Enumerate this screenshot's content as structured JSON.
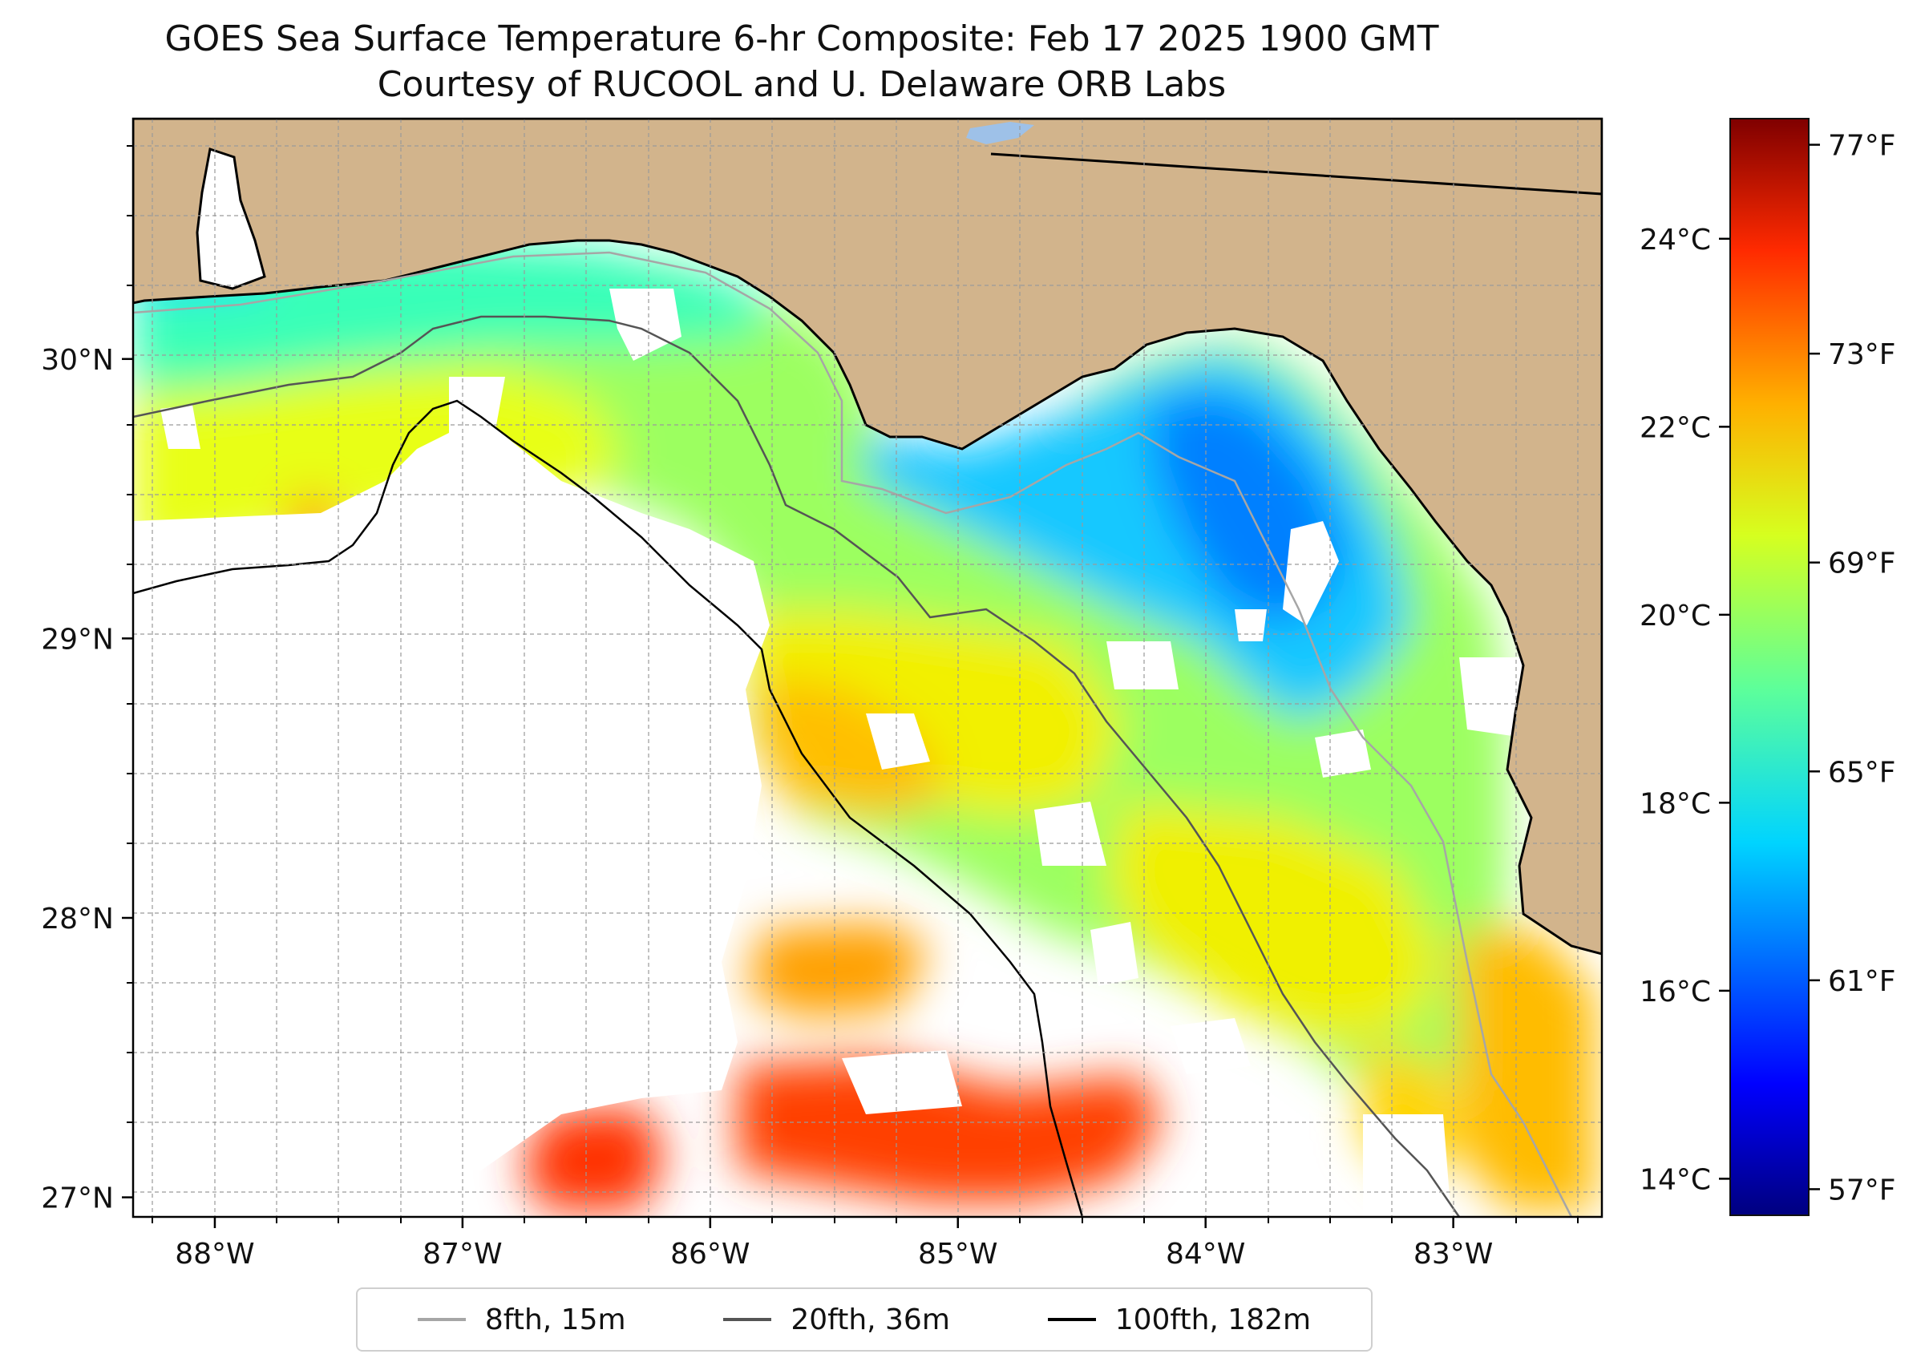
{
  "title": {
    "line1": "GOES Sea Surface Temperature 6-hr Composite: Feb 17 2025 1900 GMT",
    "line2": "Courtesy of RUCOOL and U. Delaware ORB Labs"
  },
  "map": {
    "land_color": "#d2b48c",
    "no_data_color": "#ffffff",
    "lake_color": "#9ec1e8",
    "extent": {
      "lon_min": -88.33,
      "lon_max": -82.4,
      "lat_min": 26.93,
      "lat_max": 30.86
    },
    "lon_ticks": [
      {
        "value": -88,
        "label": "88°W"
      },
      {
        "value": -87,
        "label": "87°W"
      },
      {
        "value": -86,
        "label": "86°W"
      },
      {
        "value": -85,
        "label": "85°W"
      },
      {
        "value": -84,
        "label": "84°W"
      },
      {
        "value": -83,
        "label": "83°W"
      }
    ],
    "lat_ticks": [
      {
        "value": 30,
        "label": "30°N"
      },
      {
        "value": 29,
        "label": "29°N"
      },
      {
        "value": 28,
        "label": "28°N"
      },
      {
        "value": 27,
        "label": "27°N"
      }
    ]
  },
  "legend": [
    {
      "label": "8fth, 15m",
      "color": "#a6a6a6"
    },
    {
      "label": "20fth, 36m",
      "color": "#555555"
    },
    {
      "label": "100fth, 182m",
      "color": "#000000"
    }
  ],
  "colorbar": {
    "colormap": "jet",
    "celsius_ticks": [
      {
        "value": 24,
        "label": "24°C"
      },
      {
        "value": 22,
        "label": "22°C"
      },
      {
        "value": 20,
        "label": "20°C"
      },
      {
        "value": 18,
        "label": "18°C"
      },
      {
        "value": 16,
        "label": "16°C"
      },
      {
        "value": 14,
        "label": "14°C"
      }
    ],
    "fahrenheit_ticks": [
      {
        "value": 77,
        "label": "77°F"
      },
      {
        "value": 73,
        "label": "73°F"
      },
      {
        "value": 69,
        "label": "69°F"
      },
      {
        "value": 65,
        "label": "65°F"
      },
      {
        "value": 61,
        "label": "61°F"
      },
      {
        "value": 57,
        "label": "57°F"
      }
    ]
  }
}
